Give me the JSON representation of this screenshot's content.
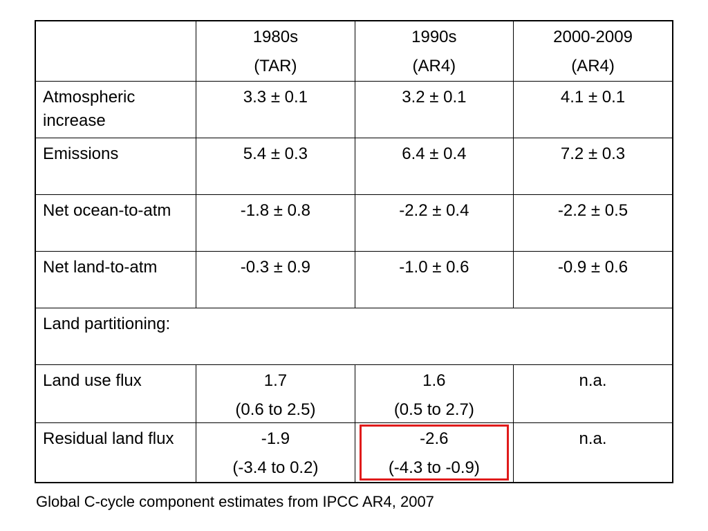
{
  "table": {
    "header": [
      {
        "line1": "",
        "line2": ""
      },
      {
        "line1": "1980s",
        "line2": "(TAR)"
      },
      {
        "line1": "1990s",
        "line2": "(AR4)"
      },
      {
        "line1": "2000-2009",
        "line2": "(AR4)"
      }
    ],
    "rows": [
      {
        "label": "Atmospheric increase",
        "cells": [
          {
            "line1": "3.3 ± 0.1",
            "line2": ""
          },
          {
            "line1": "3.2 ± 0.1",
            "line2": ""
          },
          {
            "line1": "4.1 ± 0.1",
            "line2": ""
          }
        ]
      },
      {
        "label": "Emissions",
        "cells": [
          {
            "line1": "5.4 ± 0.3",
            "line2": ""
          },
          {
            "line1": "6.4 ± 0.4",
            "line2": ""
          },
          {
            "line1": "7.2 ± 0.3",
            "line2": ""
          }
        ]
      },
      {
        "label": "Net ocean-to-atm",
        "cells": [
          {
            "line1": "-1.8 ± 0.8",
            "line2": ""
          },
          {
            "line1": "-2.2 ± 0.4",
            "line2": ""
          },
          {
            "line1": "-2.2 ± 0.5",
            "line2": ""
          }
        ]
      },
      {
        "label": "Net land-to-atm",
        "cells": [
          {
            "line1": "-0.3 ± 0.9",
            "line2": ""
          },
          {
            "line1": "-1.0 ± 0.6",
            "line2": ""
          },
          {
            "line1": "-0.9 ± 0.6",
            "line2": ""
          }
        ]
      },
      {
        "label": "Land partitioning:",
        "section": true
      },
      {
        "label": "Land use flux",
        "cells": [
          {
            "line1": "1.7",
            "line2": "(0.6 to 2.5)"
          },
          {
            "line1": "1.6",
            "line2": "(0.5 to 2.7)"
          },
          {
            "line1": "n.a.",
            "line2": ""
          }
        ]
      },
      {
        "label": "Residual land flux",
        "cells": [
          {
            "line1": "-1.9",
            "line2": "(-3.4 to 0.2)"
          },
          {
            "line1": "-2.6",
            "line2": "(-4.3 to -0.9)"
          },
          {
            "line1": "n.a.",
            "line2": ""
          }
        ]
      }
    ]
  },
  "highlight": {
    "row": "Residual land flux",
    "column": "1990s",
    "color": "#e01b1b"
  },
  "caption": "Global C-cycle component estimates from IPCC AR4, 2007"
}
